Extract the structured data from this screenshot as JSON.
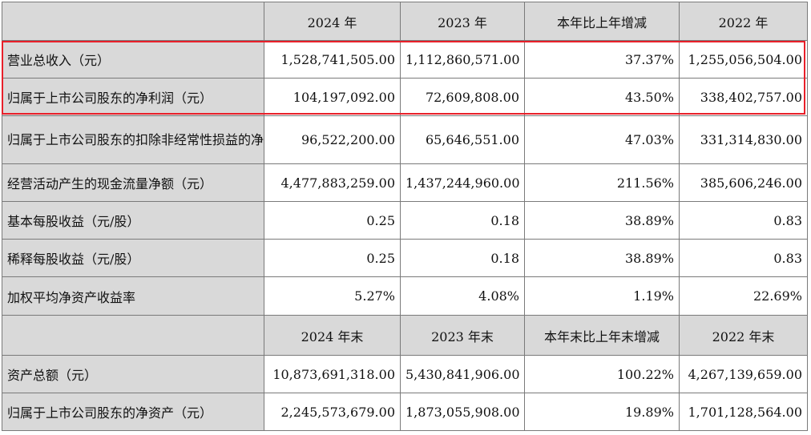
{
  "header1": {
    "c1": "2024 年",
    "c2": "2023 年",
    "c3": "本年比上年增减",
    "c4": "2022 年"
  },
  "rows1": [
    {
      "label": "营业总收入（元）",
      "v2024": "1,528,741,505.00",
      "v2023": "1,112,860,571.00",
      "change": "37.37%",
      "v2022": "1,255,056,504.00"
    },
    {
      "label": "归属于上市公司股东的净利润（元）",
      "v2024": "104,197,092.00",
      "v2023": "72,609,808.00",
      "change": "43.50%",
      "v2022": "338,402,757.00"
    },
    {
      "label": "归属于上市公司股东的扣除非经常性损益的净利润（元）",
      "v2024": "96,522,200.00",
      "v2023": "65,646,551.00",
      "change": "47.03%",
      "v2022": "331,314,830.00"
    },
    {
      "label": "经营活动产生的现金流量净额（元）",
      "v2024": "4,477,883,259.00",
      "v2023": "1,437,244,960.00",
      "change": "211.56%",
      "v2022": "385,606,246.00"
    },
    {
      "label": "基本每股收益（元/股）",
      "v2024": "0.25",
      "v2023": "0.18",
      "change": "38.89%",
      "v2022": "0.83"
    },
    {
      "label": "稀释每股收益（元/股）",
      "v2024": "0.25",
      "v2023": "0.18",
      "change": "38.89%",
      "v2022": "0.83"
    },
    {
      "label": "加权平均净资产收益率",
      "v2024": "5.27%",
      "v2023": "4.08%",
      "change": "1.19%",
      "v2022": "22.69%"
    }
  ],
  "header2": {
    "c1": "2024 年末",
    "c2": "2023 年末",
    "c3": "本年末比上年末增减",
    "c4": "2022 年末"
  },
  "rows2": [
    {
      "label": "资产总额（元）",
      "v2024": "10,873,691,318.00",
      "v2023": "5,430,841,906.00",
      "change": "100.22%",
      "v2022": "4,267,139,659.00"
    },
    {
      "label": "归属于上市公司股东的净资产（元）",
      "v2024": "2,245,573,679.00",
      "v2023": "1,873,055,908.00",
      "change": "19.89%",
      "v2022": "1,701,128,564.00"
    }
  ],
  "highlight": {
    "color": "#e8202a",
    "rows": [
      "rows1.0",
      "rows1.1"
    ]
  }
}
